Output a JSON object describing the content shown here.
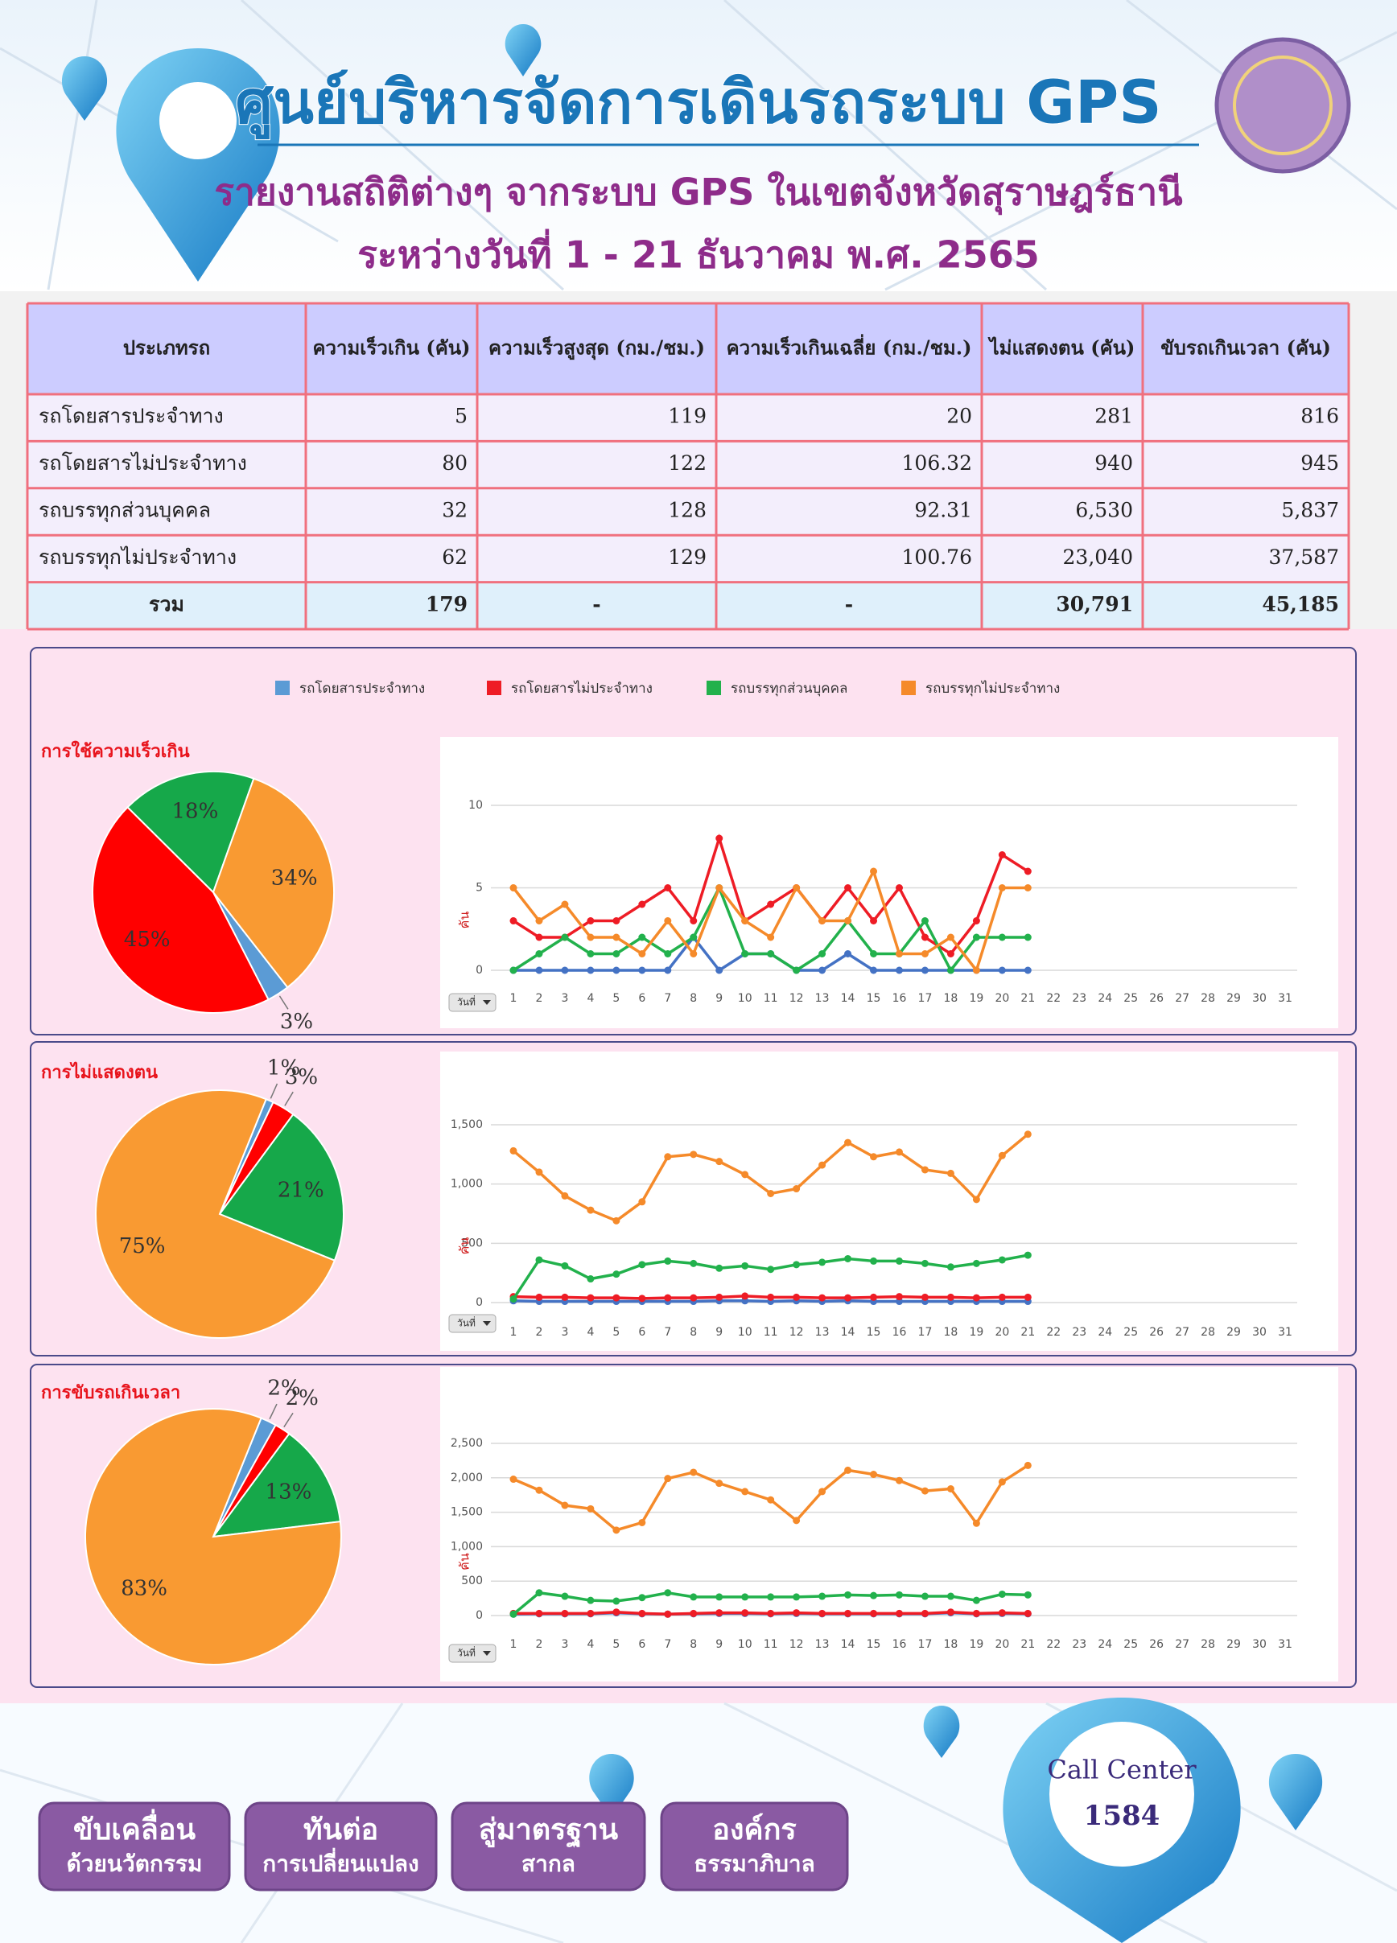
{
  "header": {
    "title": "ศูนย์บริหารจัดการเดินรถระบบ GPS",
    "subtitle": "รายงานสถิติต่างๆ จากระบบ GPS ในเขตจังหวัดสุราษฎร์ธานี",
    "date": "ระหว่างวันที่  1 - 21 ธันวาคม  พ.ศ. 2565"
  },
  "table": {
    "headers": [
      "ประเภทรถ",
      "ความเร็วเกิน (คัน)",
      "ความเร็วสูงสุด (กม./ชม.)",
      "ความเร็วเกินเฉลี่ย (กม./ชม.)",
      "ไม่แสดงตน (คัน)",
      "ขับรถเกินเวลา (คัน)"
    ],
    "rows": [
      [
        "รถโดยสารประจำทาง",
        "5",
        "119",
        "20",
        "281",
        "816"
      ],
      [
        "รถโดยสารไม่ประจำทาง",
        "80",
        "122",
        "106.32",
        "940",
        "945"
      ],
      [
        "รถบรรทุกส่วนบุคคล",
        "32",
        "128",
        "92.31",
        "6,530",
        "5,837"
      ],
      [
        "รถบรรทุกไม่ประจำทาง",
        "62",
        "129",
        "100.76",
        "23,040",
        "37,587"
      ]
    ],
    "total": [
      "รวม",
      "179",
      "-",
      "-",
      "30,791",
      "45,185"
    ]
  },
  "chart_data": [
    {
      "type": "line",
      "title": "การใช้ความเร็วเกิน",
      "y_label": "คัน",
      "dropdown": "วันที่",
      "pie": {
        "type": "pie",
        "values": [
          3,
          45,
          18,
          34
        ],
        "value_labels": [
          "3%",
          "45%",
          "18%",
          "34%"
        ]
      },
      "x": [
        1,
        2,
        3,
        4,
        5,
        6,
        7,
        8,
        9,
        10,
        11,
        12,
        13,
        14,
        15,
        16,
        17,
        18,
        19,
        20,
        21
      ],
      "xlim": [
        1,
        31
      ],
      "xticks": [
        1,
        2,
        3,
        4,
        5,
        6,
        7,
        8,
        9,
        10,
        11,
        12,
        13,
        14,
        15,
        16,
        17,
        18,
        19,
        20,
        21,
        22,
        23,
        24,
        25,
        26,
        27,
        28,
        29,
        30,
        31
      ],
      "ylim": [
        0,
        10
      ],
      "yticks": [
        0,
        5,
        10
      ],
      "grid": true,
      "series": [
        {
          "name": "รถโดยสารประจำทาง",
          "color": "#4472c4",
          "values": [
            0,
            0,
            0,
            0,
            0,
            0,
            0,
            2,
            0,
            1,
            1,
            0,
            0,
            1,
            0,
            0,
            0,
            0,
            0,
            0,
            0
          ]
        },
        {
          "name": "รถโดยสารไม่ประจำทาง",
          "color": "#ee1c25",
          "values": [
            3,
            2,
            2,
            3,
            3,
            4,
            5,
            3,
            8,
            3,
            4,
            5,
            3,
            5,
            3,
            5,
            2,
            1,
            3,
            7,
            6
          ]
        },
        {
          "name": "รถบรรทุกส่วนบุคคล",
          "color": "#22b14c",
          "values": [
            0,
            1,
            2,
            1,
            1,
            2,
            1,
            2,
            5,
            1,
            1,
            0,
            1,
            3,
            1,
            1,
            3,
            0,
            2,
            2,
            2
          ]
        },
        {
          "name": "รถบรรทุกไม่ประจำทาง",
          "color": "#f58a2a",
          "values": [
            5,
            3,
            4,
            2,
            2,
            1,
            3,
            1,
            5,
            3,
            2,
            5,
            3,
            3,
            6,
            1,
            1,
            2,
            0,
            5,
            5
          ]
        }
      ]
    },
    {
      "type": "line",
      "title": "การไม่แสดงตน",
      "y_label": "คัน",
      "dropdown": "วันที่",
      "pie": {
        "type": "pie",
        "values": [
          1,
          3,
          21,
          75
        ],
        "value_labels": [
          "1%",
          "3%",
          "21%",
          "75%"
        ]
      },
      "x": [
        1,
        2,
        3,
        4,
        5,
        6,
        7,
        8,
        9,
        10,
        11,
        12,
        13,
        14,
        15,
        16,
        17,
        18,
        19,
        20,
        21
      ],
      "xlim": [
        1,
        31
      ],
      "xticks": [
        1,
        2,
        3,
        4,
        5,
        6,
        7,
        8,
        9,
        10,
        11,
        12,
        13,
        14,
        15,
        16,
        17,
        18,
        19,
        20,
        21,
        22,
        23,
        24,
        25,
        26,
        27,
        28,
        29,
        30,
        31
      ],
      "ylim": [
        0,
        1500
      ],
      "yticks": [
        0,
        500,
        {
          "value": 1000,
          "label": "1,000"
        },
        {
          "value": 1500,
          "label": "1,500"
        }
      ],
      "grid": true,
      "series": [
        {
          "color": "#4472c4",
          "values": [
            15,
            10,
            10,
            10,
            10,
            10,
            10,
            10,
            15,
            15,
            10,
            15,
            10,
            15,
            10,
            10,
            10,
            10,
            10,
            10,
            10
          ]
        },
        {
          "color": "#ee1c25",
          "values": [
            50,
            45,
            45,
            40,
            40,
            35,
            40,
            40,
            45,
            55,
            45,
            45,
            40,
            40,
            45,
            50,
            45,
            45,
            40,
            45,
            45
          ]
        },
        {
          "color": "#22b14c",
          "values": [
            30,
            360,
            310,
            200,
            240,
            320,
            350,
            330,
            290,
            310,
            280,
            320,
            340,
            370,
            350,
            350,
            330,
            300,
            330,
            360,
            400
          ]
        },
        {
          "color": "#f58a2a",
          "values": [
            1280,
            1100,
            900,
            780,
            690,
            850,
            1230,
            1250,
            1190,
            1080,
            920,
            960,
            1160,
            1350,
            1230,
            1270,
            1120,
            1090,
            870,
            1240,
            1420
          ]
        }
      ]
    },
    {
      "type": "line",
      "title": "การขับรถเกินเวลา",
      "y_label": "คัน",
      "dropdown": "วันที่",
      "pie": {
        "type": "pie",
        "values": [
          2,
          2,
          13,
          83
        ],
        "value_labels": [
          "2%",
          "2%",
          "13%",
          "83%"
        ]
      },
      "x": [
        1,
        2,
        3,
        4,
        5,
        6,
        7,
        8,
        9,
        10,
        11,
        12,
        13,
        14,
        15,
        16,
        17,
        18,
        19,
        20,
        21
      ],
      "xlim": [
        1,
        31
      ],
      "xticks": [
        1,
        2,
        3,
        4,
        5,
        6,
        7,
        8,
        9,
        10,
        11,
        12,
        13,
        14,
        15,
        16,
        17,
        18,
        19,
        20,
        21,
        22,
        23,
        24,
        25,
        26,
        27,
        28,
        29,
        30,
        31
      ],
      "ylim": [
        0,
        2500
      ],
      "yticks": [
        0,
        500,
        {
          "value": 1000,
          "label": "1,000"
        },
        {
          "value": 1500,
          "label": "1,500"
        },
        {
          "value": 2000,
          "label": "2,000"
        },
        {
          "value": 2500,
          "label": "2,500"
        }
      ],
      "grid": true,
      "series": [
        {
          "color": "#4472c4",
          "values": [
            20,
            25,
            25,
            25,
            40,
            25,
            20,
            25,
            30,
            30,
            25,
            30,
            25,
            25,
            25,
            25,
            25,
            40,
            25,
            30,
            25
          ]
        },
        {
          "color": "#ee1c25",
          "values": [
            30,
            30,
            30,
            30,
            50,
            30,
            20,
            30,
            40,
            40,
            30,
            40,
            30,
            30,
            30,
            30,
            30,
            50,
            30,
            40,
            30
          ]
        },
        {
          "color": "#22b14c",
          "values": [
            20,
            330,
            280,
            220,
            210,
            260,
            330,
            270,
            270,
            270,
            270,
            270,
            280,
            300,
            290,
            300,
            280,
            280,
            220,
            310,
            300
          ]
        },
        {
          "color": "#f58a2a",
          "values": [
            1980,
            1820,
            1600,
            1550,
            1240,
            1350,
            1990,
            2080,
            1920,
            1800,
            1680,
            1380,
            1800,
            2110,
            2050,
            1960,
            1810,
            1840,
            1340,
            1940,
            2180
          ]
        }
      ]
    }
  ],
  "footer": {
    "buttons": [
      [
        "ขับเคลื่อน",
        "ด้วยนวัตกรรม"
      ],
      [
        "ทันต่อ",
        "การเปลี่ยนแปลง"
      ],
      [
        "สู่มาตรฐาน",
        "สากล"
      ],
      [
        "องค์กร",
        "ธรรมาภิบาล"
      ]
    ],
    "call_center": "Call Center",
    "call_number": "1584"
  }
}
